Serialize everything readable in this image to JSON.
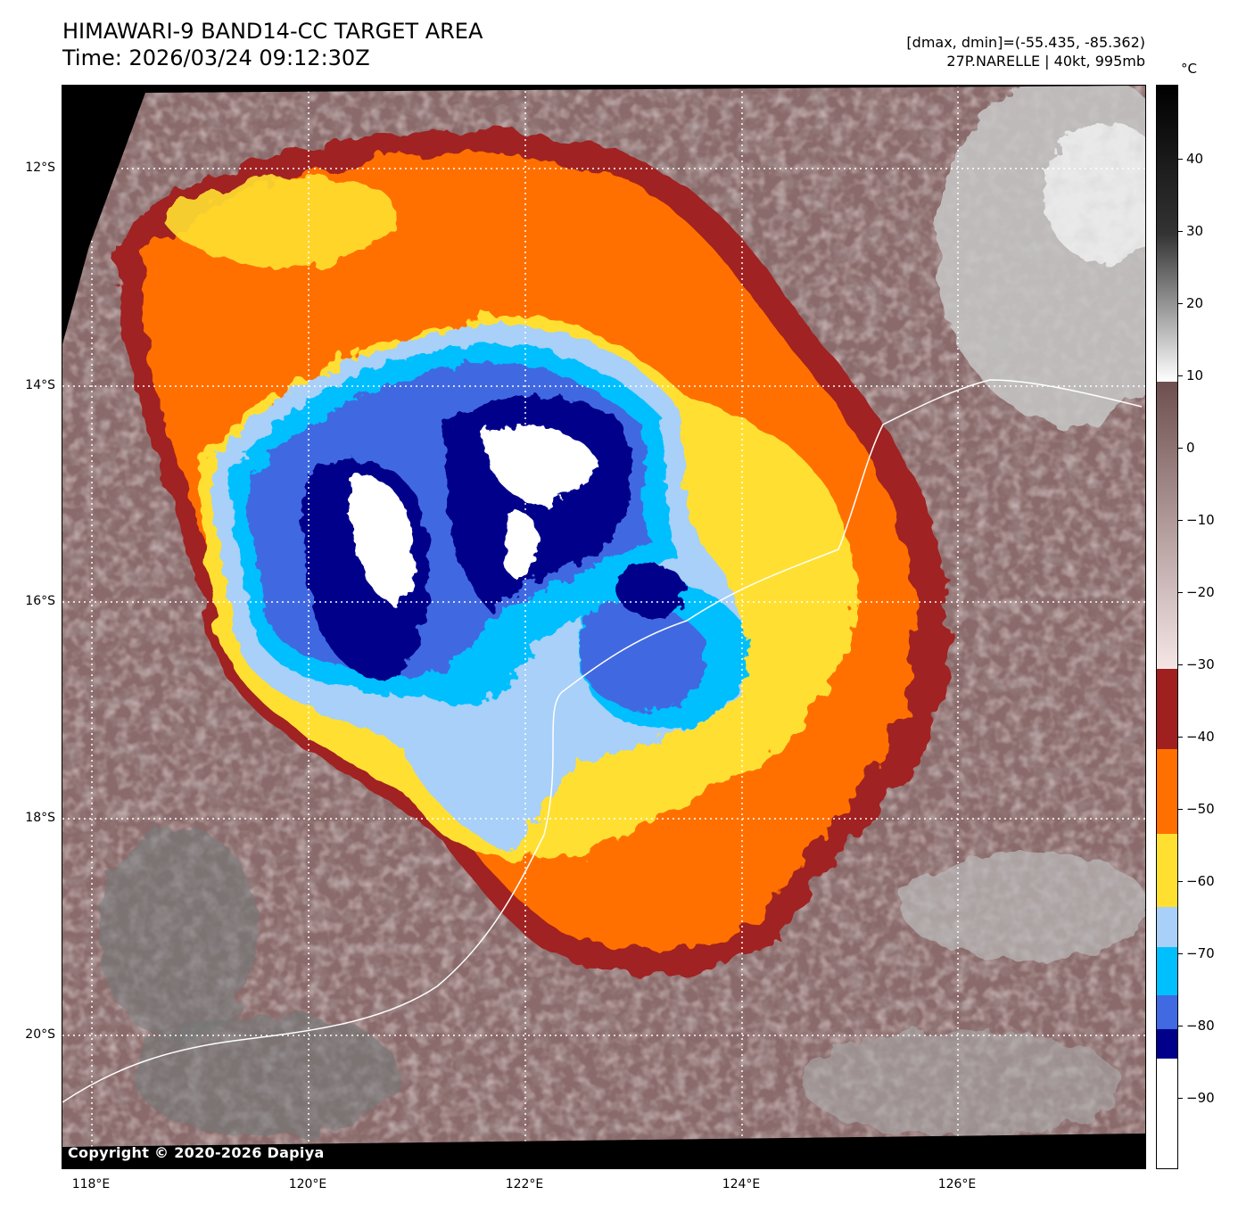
{
  "title": {
    "line1": "HIMAWARI-9 BAND14-CC TARGET AREA",
    "line2": "Time: 2026/03/24 09:12:30Z"
  },
  "meta": {
    "range": "[dmax, dmin]=(-55.435, -85.362)",
    "storm": "27P.NARELLE | 40kt, 995mb"
  },
  "copyright": "Copyright © 2020-2026 Dapiya",
  "lat_labels": [
    "12°S",
    "14°S",
    "16°S",
    "18°S",
    "20°S"
  ],
  "lon_labels": [
    "118°E",
    "120°E",
    "122°E",
    "124°E",
    "126°E"
  ],
  "colorbar": {
    "unit": "°C",
    "ticks": [
      "40",
      "30",
      "20",
      "10",
      "0",
      "−10",
      "−20",
      "−30",
      "−40",
      "−50",
      "−60",
      "−70",
      "−80",
      "−90"
    ],
    "colors": {
      "above_10": [
        "#000000",
        "#ffffff"
      ],
      "10_to_-30": [
        "#6e4f4f",
        "#f5e6e6"
      ],
      "-30_to_-40": "#a02020",
      "-40_to_-50": "#ff7000",
      "-50_to_-60": "#ffe030",
      "-60_to_-70": "#a8d0f8",
      "-70_to_-80": "#00bfff",
      "-80_to_-85": "#4169e1",
      "-85_to_-90": "#00008b",
      "below_-90": "#ffffff"
    }
  }
}
